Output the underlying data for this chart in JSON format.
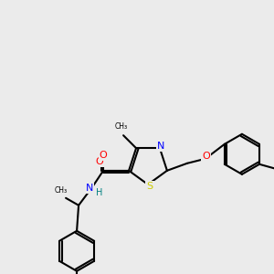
{
  "background_color": "#ebebeb",
  "bond_color": "#000000",
  "atom_colors": {
    "N": "#0000FF",
    "O": "#FF0000",
    "S": "#CCCC00",
    "C": "#000000",
    "H": "#008080"
  },
  "lw": 1.5,
  "figsize": [
    3.0,
    3.0
  ],
  "dpi": 100
}
